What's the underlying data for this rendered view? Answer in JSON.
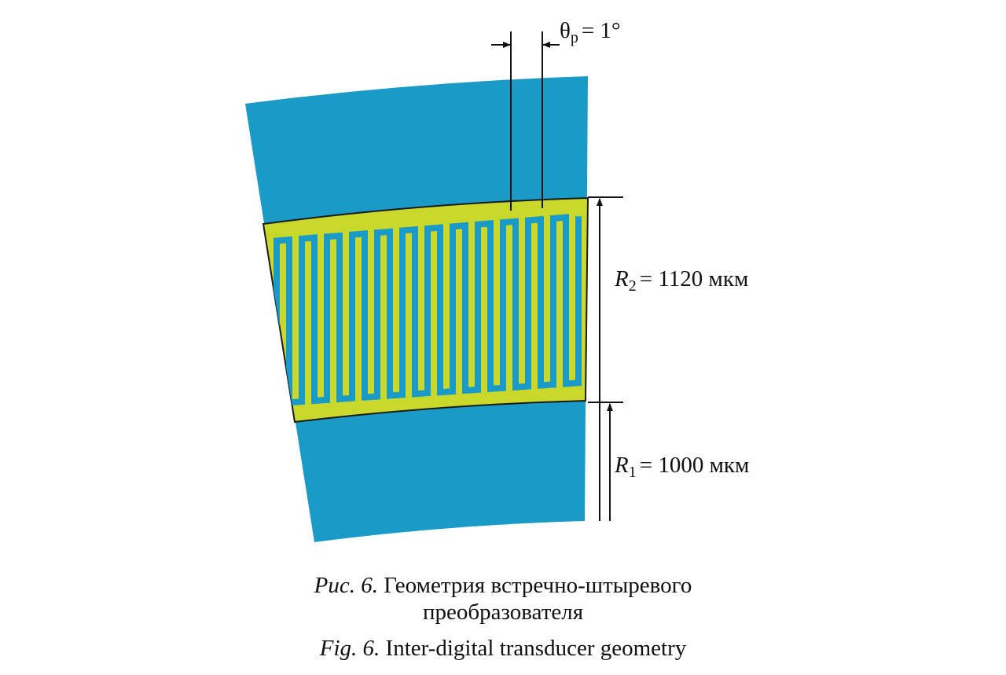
{
  "annotations": {
    "theta": {
      "symbol": "θ",
      "subscript": "p",
      "value": "= 1°"
    },
    "r2": {
      "symbol": "R",
      "subscript": "2",
      "value": "= 1120 мкм"
    },
    "r1": {
      "symbol": "R",
      "subscript": "1",
      "value": "= 1000 мкм"
    }
  },
  "caption": {
    "ru_label": "Рис. 6.",
    "ru_text": "Геометрия встречно-штыревого",
    "ru_text_2": "преобразователя",
    "en_label": "Fig. 6.",
    "en_text": "Inter-digital transducer geometry"
  }
}
